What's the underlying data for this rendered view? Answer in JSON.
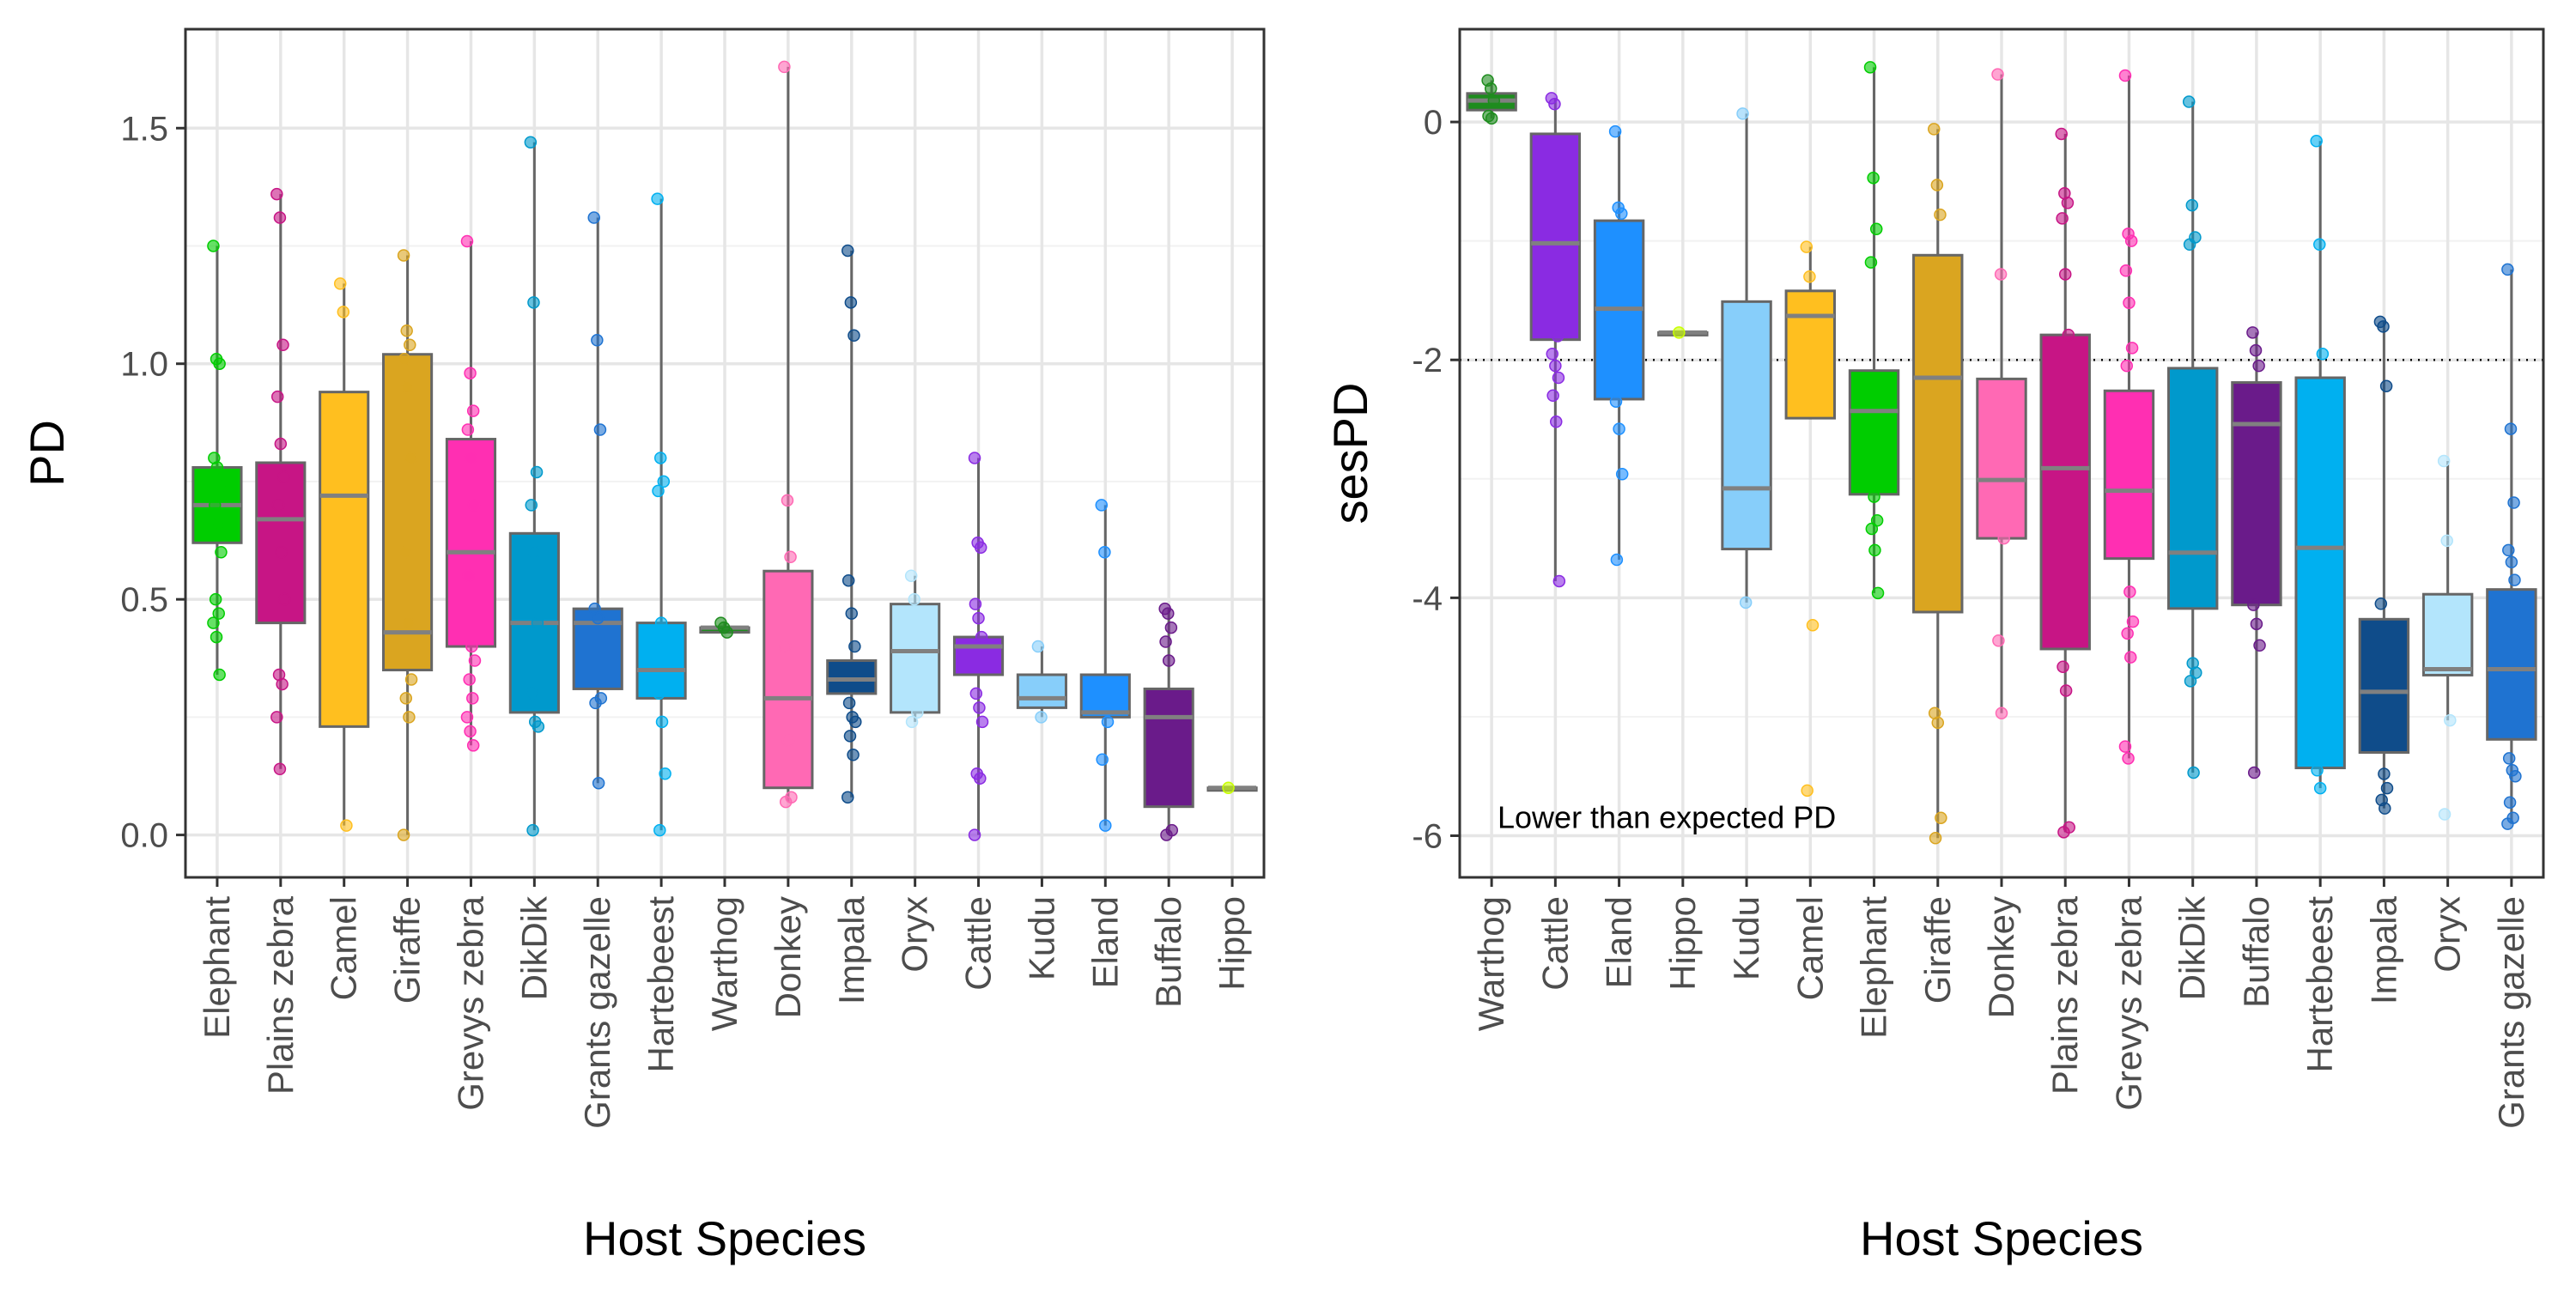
{
  "chart_data": [
    {
      "type": "box",
      "xlabel": "Host Species",
      "ylabel": "PD",
      "ylim": [
        -0.09,
        1.71
      ],
      "yticks": [
        0.0,
        0.5,
        1.0,
        1.5
      ],
      "ytick_labels": [
        "0.0",
        "0.5",
        "1.0",
        "1.5"
      ],
      "grid": true,
      "species": [
        {
          "name": "Elephant",
          "color": "#00CD00",
          "q1": 0.62,
          "median": 0.7,
          "q3": 0.78,
          "min": 0.34,
          "max": 1.25,
          "points": [
            1.25,
            1.01,
            1.0,
            0.8,
            0.78,
            0.74,
            0.7,
            0.66,
            0.6,
            0.5,
            0.47,
            0.45,
            0.42,
            0.34
          ]
        },
        {
          "name": "Plains zebra",
          "color": "#C71585",
          "q1": 0.45,
          "median": 0.67,
          "q3": 0.79,
          "min": 0.14,
          "max": 1.36,
          "points": [
            1.36,
            1.31,
            1.04,
            0.93,
            0.83,
            0.76,
            0.7,
            0.6,
            0.5,
            0.34,
            0.32,
            0.25,
            0.14
          ]
        },
        {
          "name": "Camel",
          "color": "#FFBF1F",
          "q1": 0.23,
          "median": 0.72,
          "q3": 0.94,
          "min": 0.02,
          "max": 1.17,
          "points": [
            1.17,
            1.11,
            0.02
          ]
        },
        {
          "name": "Giraffe",
          "color": "#DAA520",
          "q1": 0.35,
          "median": 0.43,
          "q3": 1.02,
          "min": 0.0,
          "max": 1.23,
          "points": [
            1.23,
            1.07,
            1.04,
            1.01,
            0.95,
            0.8,
            0.6,
            0.45,
            0.33,
            0.29,
            0.25,
            0.0
          ]
        },
        {
          "name": "Grevys zebra",
          "color": "#FF2FB2",
          "q1": 0.4,
          "median": 0.6,
          "q3": 0.84,
          "min": 0.19,
          "max": 1.26,
          "points": [
            1.26,
            0.98,
            0.9,
            0.86,
            0.8,
            0.7,
            0.55,
            0.4,
            0.37,
            0.33,
            0.29,
            0.25,
            0.22,
            0.19
          ]
        },
        {
          "name": "DikDik",
          "color": "#0099CC",
          "q1": 0.26,
          "median": 0.45,
          "q3": 0.64,
          "min": 0.01,
          "max": 1.47,
          "points": [
            1.47,
            1.13,
            0.77,
            0.7,
            0.6,
            0.45,
            0.3,
            0.24,
            0.23,
            0.01
          ]
        },
        {
          "name": "Grants gazelle",
          "color": "#1F73D1",
          "q1": 0.31,
          "median": 0.45,
          "q3": 0.48,
          "min": 0.11,
          "max": 1.31,
          "points": [
            1.31,
            1.05,
            0.86,
            0.48,
            0.46,
            0.29,
            0.28,
            0.11
          ]
        },
        {
          "name": "Hartebeest",
          "color": "#00B0F0",
          "q1": 0.29,
          "median": 0.35,
          "q3": 0.45,
          "min": 0.01,
          "max": 1.35,
          "points": [
            1.35,
            0.8,
            0.75,
            0.73,
            0.45,
            0.4,
            0.3,
            0.24,
            0.13,
            0.01
          ]
        },
        {
          "name": "Warthog",
          "color": "#1E8C1E",
          "q1": 0.43,
          "median": 0.44,
          "q3": 0.44,
          "min": 0.43,
          "max": 0.45,
          "points": [
            0.45,
            0.44,
            0.43
          ]
        },
        {
          "name": "Donkey",
          "color": "#FF69B4",
          "q1": 0.1,
          "median": 0.29,
          "q3": 0.56,
          "min": 0.07,
          "max": 1.63,
          "points": [
            1.63,
            0.71,
            0.59,
            0.4,
            0.2,
            0.08,
            0.07
          ]
        },
        {
          "name": "Impala",
          "color": "#0F4C8A",
          "q1": 0.3,
          "median": 0.33,
          "q3": 0.37,
          "min": 0.08,
          "max": 1.24,
          "points": [
            1.24,
            1.13,
            1.06,
            0.54,
            0.47,
            0.4,
            0.28,
            0.25,
            0.24,
            0.21,
            0.17,
            0.08
          ]
        },
        {
          "name": "Oryx",
          "color": "#B3E5FC",
          "q1": 0.26,
          "median": 0.39,
          "q3": 0.49,
          "min": 0.24,
          "max": 0.55,
          "points": [
            0.55,
            0.5,
            0.26,
            0.24
          ]
        },
        {
          "name": "Cattle",
          "color": "#8A2BE2",
          "q1": 0.34,
          "median": 0.4,
          "q3": 0.42,
          "min": 0.0,
          "max": 0.8,
          "points": [
            0.8,
            0.62,
            0.61,
            0.49,
            0.46,
            0.42,
            0.3,
            0.27,
            0.24,
            0.13,
            0.12,
            0.0
          ]
        },
        {
          "name": "Kudu",
          "color": "#87CEFA",
          "q1": 0.27,
          "median": 0.29,
          "q3": 0.34,
          "min": 0.25,
          "max": 0.4,
          "points": [
            0.4,
            0.25
          ]
        },
        {
          "name": "Eland",
          "color": "#1E90FF",
          "q1": 0.25,
          "median": 0.26,
          "q3": 0.34,
          "min": 0.02,
          "max": 0.7,
          "points": [
            0.7,
            0.6,
            0.24,
            0.16,
            0.02
          ]
        },
        {
          "name": "Buffalo",
          "color": "#6A1B8A",
          "q1": 0.06,
          "median": 0.25,
          "q3": 0.31,
          "min": 0.0,
          "max": 0.48,
          "points": [
            0.48,
            0.47,
            0.44,
            0.41,
            0.37,
            0.01,
            0.0
          ]
        },
        {
          "name": "Hippo",
          "color": "#C8FF00",
          "q1": 0.1,
          "median": 0.1,
          "q3": 0.1,
          "min": 0.1,
          "max": 0.1,
          "points": [
            0.1
          ]
        }
      ]
    },
    {
      "type": "box",
      "xlabel": "Host Species",
      "ylabel": "sesPD",
      "ylim": [
        -6.35,
        0.78
      ],
      "yticks": [
        0,
        -2,
        -4,
        -6
      ],
      "ytick_labels": [
        "0",
        "-2",
        "-4",
        "-6"
      ],
      "reference_line": -2,
      "annotation": "Lower than expected PD",
      "grid": true,
      "species": [
        {
          "name": "Warthog",
          "color": "#1E8C1E",
          "q1": 0.1,
          "median": 0.18,
          "q3": 0.24,
          "min": 0.03,
          "max": 0.35,
          "points": [
            0.35,
            0.28,
            0.18,
            0.05,
            0.03
          ]
        },
        {
          "name": "Cattle",
          "color": "#8A2BE2",
          "q1": -1.83,
          "median": -1.02,
          "q3": -0.1,
          "min": -3.86,
          "max": 0.2,
          "points": [
            0.2,
            0.15,
            -1.8,
            -1.95,
            -2.05,
            -2.15,
            -2.3,
            -2.52,
            -3.86
          ]
        },
        {
          "name": "Eland",
          "color": "#1E90FF",
          "q1": -2.33,
          "median": -1.57,
          "q3": -0.83,
          "min": -3.68,
          "max": -0.08,
          "points": [
            -0.08,
            -0.72,
            -0.77,
            -2.35,
            -2.58,
            -2.96,
            -3.68
          ]
        },
        {
          "name": "Hippo",
          "color": "#C8FF00",
          "q1": -1.77,
          "median": -1.77,
          "q3": -1.77,
          "min": -1.77,
          "max": -1.77,
          "points": [
            -1.77
          ]
        },
        {
          "name": "Kudu",
          "color": "#87CEFA",
          "q1": -3.59,
          "median": -3.08,
          "q3": -1.51,
          "min": -4.04,
          "max": 0.07,
          "points": [
            0.07,
            -4.04
          ]
        },
        {
          "name": "Camel",
          "color": "#FFBF1F",
          "q1": -2.49,
          "median": -1.63,
          "q3": -1.42,
          "min": -2.49,
          "max": -1.05,
          "points": [
            -1.05,
            -1.3,
            -4.23,
            -5.62
          ]
        },
        {
          "name": "Elephant",
          "color": "#00CD00",
          "q1": -3.13,
          "median": -2.43,
          "q3": -2.09,
          "min": -3.96,
          "max": 0.46,
          "points": [
            0.46,
            -0.47,
            -0.9,
            -1.18,
            -3.15,
            -3.35,
            -3.42,
            -3.6,
            -3.96
          ]
        },
        {
          "name": "Giraffe",
          "color": "#DAA520",
          "q1": -4.12,
          "median": -2.15,
          "q3": -1.12,
          "min": -6.02,
          "max": -0.06,
          "points": [
            -0.06,
            -0.53,
            -0.78,
            -4.97,
            -5.05,
            -5.85,
            -6.02
          ]
        },
        {
          "name": "Donkey",
          "color": "#FF69B4",
          "q1": -3.5,
          "median": -3.01,
          "q3": -2.16,
          "min": -4.97,
          "max": 0.4,
          "points": [
            0.4,
            -1.28,
            -3.5,
            -4.36,
            -4.97
          ]
        },
        {
          "name": "Plains zebra",
          "color": "#C71585",
          "q1": -4.43,
          "median": -2.91,
          "q3": -1.79,
          "min": -5.97,
          "max": -0.1,
          "points": [
            -0.1,
            -0.6,
            -0.68,
            -0.81,
            -1.28,
            -1.79,
            -4.58,
            -4.78,
            -5.93,
            -5.97
          ]
        },
        {
          "name": "Grevys zebra",
          "color": "#FF2FB2",
          "q1": -3.67,
          "median": -3.1,
          "q3": -2.26,
          "min": -5.35,
          "max": 0.39,
          "points": [
            0.39,
            -0.94,
            -1.0,
            -1.25,
            -1.52,
            -1.9,
            -2.05,
            -3.95,
            -4.2,
            -4.3,
            -4.5,
            -5.25,
            -5.35
          ]
        },
        {
          "name": "DikDik",
          "color": "#0099CC",
          "q1": -4.09,
          "median": -3.62,
          "q3": -2.07,
          "min": -5.47,
          "max": 0.17,
          "points": [
            0.17,
            -0.7,
            -0.97,
            -1.03,
            -4.55,
            -4.63,
            -4.7,
            -5.47
          ]
        },
        {
          "name": "Buffalo",
          "color": "#6A1B8A",
          "q1": -4.06,
          "median": -2.54,
          "q3": -2.19,
          "min": -5.47,
          "max": -1.77,
          "points": [
            -1.77,
            -1.92,
            -2.05,
            -4.06,
            -4.22,
            -4.4,
            -5.47
          ]
        },
        {
          "name": "Hartebeest",
          "color": "#00B0F0",
          "q1": -5.43,
          "median": -3.58,
          "q3": -2.15,
          "min": -5.6,
          "max": -0.16,
          "points": [
            -0.16,
            -1.03,
            -1.95,
            -5.45,
            -5.6
          ]
        },
        {
          "name": "Impala",
          "color": "#0F4C8A",
          "q1": -5.3,
          "median": -4.79,
          "q3": -4.18,
          "min": -5.77,
          "max": -1.68,
          "points": [
            -1.68,
            -1.72,
            -2.22,
            -4.05,
            -5.48,
            -5.6,
            -5.7,
            -5.77
          ]
        },
        {
          "name": "Oryx",
          "color": "#B3E5FC",
          "q1": -4.65,
          "median": -4.6,
          "q3": -3.97,
          "min": -5.03,
          "max": -2.85,
          "points": [
            -2.85,
            -3.52,
            -5.03,
            -5.82
          ]
        },
        {
          "name": "Grants gazelle",
          "color": "#1F73D1",
          "q1": -5.19,
          "median": -4.6,
          "q3": -3.93,
          "min": -5.9,
          "max": -1.24,
          "points": [
            -1.24,
            -2.58,
            -3.2,
            -3.6,
            -3.7,
            -3.85,
            -5.35,
            -5.45,
            -5.5,
            -5.72,
            -5.85,
            -5.9
          ]
        }
      ]
    }
  ]
}
